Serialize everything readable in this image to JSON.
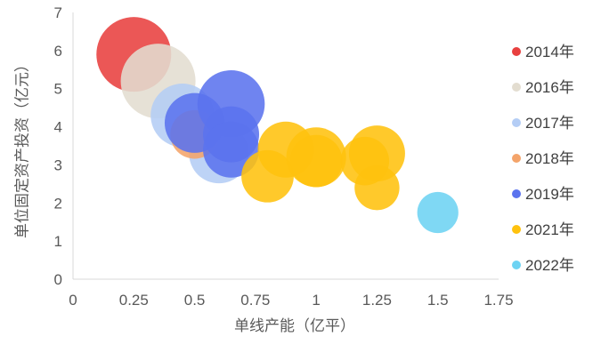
{
  "chart_data": {
    "type": "scatter",
    "subtype": "bubble",
    "title": "",
    "xlabel": "单线产能（亿平）",
    "ylabel": "单位固定资产投资（亿元）",
    "xlim": [
      0,
      1.75
    ],
    "ylim": [
      0,
      7
    ],
    "xticks": [
      "0",
      "0.25",
      "0.5",
      "0.75",
      "1",
      "1.25",
      "1.5",
      "1.75"
    ],
    "yticks": [
      "0",
      "1",
      "2",
      "3",
      "4",
      "5",
      "6",
      "7"
    ],
    "grid": false,
    "legend_position": "right",
    "series": [
      {
        "name": "2014年",
        "color": "#e8403f",
        "points": [
          {
            "x": 0.25,
            "y": 5.9,
            "r": 1.0
          }
        ]
      },
      {
        "name": "2016年",
        "color": "#e3ddd0",
        "points": [
          {
            "x": 0.35,
            "y": 5.2,
            "r": 1.0
          }
        ]
      },
      {
        "name": "2017年",
        "color": "#b4cdf5",
        "points": [
          {
            "x": 0.45,
            "y": 4.3,
            "r": 0.85
          },
          {
            "x": 0.6,
            "y": 3.3,
            "r": 0.8
          }
        ]
      },
      {
        "name": "2018年",
        "color": "#f4a46a",
        "points": [
          {
            "x": 0.5,
            "y": 3.8,
            "r": 0.65
          }
        ]
      },
      {
        "name": "2019年",
        "color": "#5b73ee",
        "points": [
          {
            "x": 0.65,
            "y": 4.6,
            "r": 0.9
          },
          {
            "x": 0.5,
            "y": 4.1,
            "r": 0.8
          },
          {
            "x": 0.65,
            "y": 3.8,
            "r": 0.75
          },
          {
            "x": 0.65,
            "y": 3.4,
            "r": 0.75
          }
        ]
      },
      {
        "name": "2021年",
        "color": "#ffc20e",
        "points": [
          {
            "x": 0.875,
            "y": 3.4,
            "r": 0.75
          },
          {
            "x": 1.0,
            "y": 3.2,
            "r": 0.8
          },
          {
            "x": 1.25,
            "y": 3.3,
            "r": 0.75
          },
          {
            "x": 1.0,
            "y": 3.1,
            "r": 0.7
          },
          {
            "x": 1.2,
            "y": 3.1,
            "r": 0.65
          },
          {
            "x": 0.8,
            "y": 2.7,
            "r": 0.7
          },
          {
            "x": 1.25,
            "y": 2.4,
            "r": 0.6
          }
        ]
      },
      {
        "name": "2022年",
        "color": "#6dd3f3",
        "points": [
          {
            "x": 1.5,
            "y": 1.75,
            "r": 0.55
          }
        ]
      }
    ]
  }
}
